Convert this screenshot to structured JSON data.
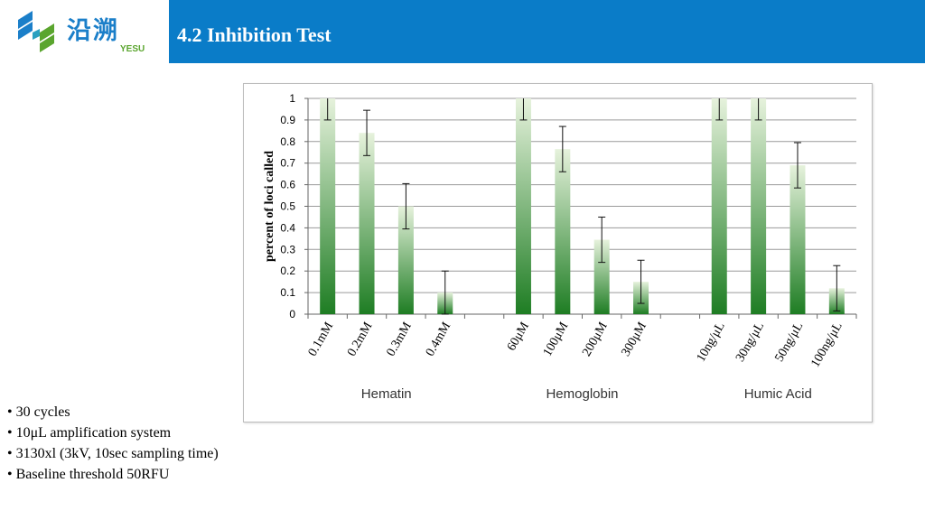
{
  "header": {
    "title": "4.2 Inhibition Test",
    "logo_cn": "沿溯",
    "logo_en": "YESU",
    "bg_color": "#0a7cc8"
  },
  "chart_data": {
    "type": "bar",
    "ylabel": "percent of loci called",
    "ylim": [
      0,
      1
    ],
    "yticks": [
      "0",
      "0.1",
      "0.2",
      "0.3",
      "0.4",
      "0.5",
      "0.6",
      "0.7",
      "0.8",
      "0.9",
      "1"
    ],
    "grid": true,
    "groups": [
      {
        "name": "Hematin",
        "categories": [
          "0.1mM",
          "0.2mM",
          "0.3mM",
          "0.4mM"
        ],
        "values": [
          1.0,
          0.84,
          0.5,
          0.1
        ],
        "errors": [
          0.1,
          0.105,
          0.105,
          0.1
        ]
      },
      {
        "name": "Hemoglobin",
        "categories": [
          "60μM",
          "100μM",
          "200μM",
          "300μM"
        ],
        "values": [
          1.0,
          0.765,
          0.345,
          0.15
        ],
        "errors": [
          0.1,
          0.105,
          0.105,
          0.1
        ]
      },
      {
        "name": "Humic Acid",
        "categories": [
          "10ng/μL",
          "30ng/μL",
          "50ng/μL",
          "100ng/μL"
        ],
        "values": [
          1.0,
          1.0,
          0.69,
          0.12
        ],
        "errors": [
          0.1,
          0.1,
          0.105,
          0.105
        ]
      }
    ],
    "bar_color_top": "#e6f2dc",
    "bar_color_bottom": "#1e7d23"
  },
  "bullets": [
    "• 30 cycles",
    "• 10μL amplification system",
    "• 3130xl (3kV, 10sec sampling time)",
    "• Baseline threshold 50RFU"
  ]
}
